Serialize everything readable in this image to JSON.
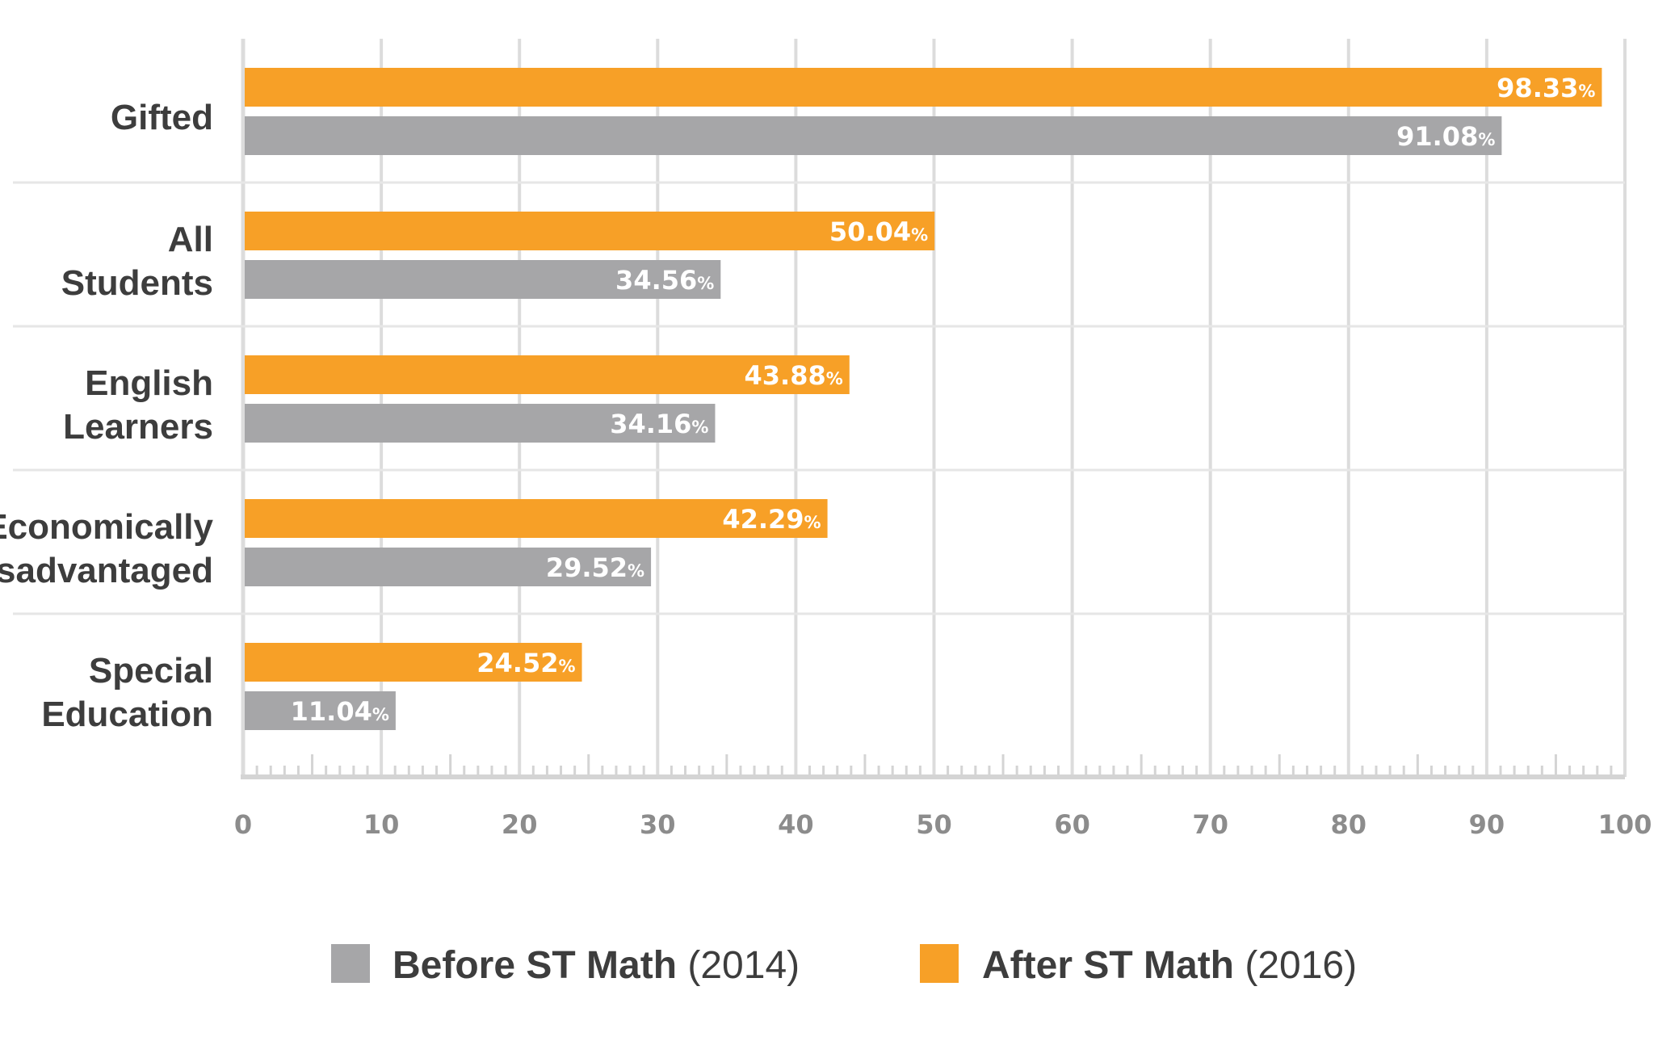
{
  "chart_data": {
    "type": "bar",
    "orientation": "horizontal",
    "categories": [
      "Gifted",
      "All Students",
      "English Learners",
      "Economically Disadvantaged",
      "Special Education"
    ],
    "category_lines": [
      [
        "Gifted"
      ],
      [
        "All",
        "Students"
      ],
      [
        "English",
        "Learners"
      ],
      [
        "Economically",
        "Disadvantaged"
      ],
      [
        "Special",
        "Education"
      ]
    ],
    "series": [
      {
        "name": "After ST Math (2016)",
        "legend_bold": "After ST Math",
        "legend_year": "(2016)",
        "color": "#f7a027",
        "values": [
          98.33,
          50.04,
          43.88,
          42.29,
          24.52
        ],
        "labels": [
          "98.33",
          "50.04",
          "43.88",
          "42.29",
          "24.52"
        ]
      },
      {
        "name": "Before ST Math (2014)",
        "legend_bold": "Before ST Math",
        "legend_year": "(2014)",
        "color": "#a6a6a8",
        "values": [
          91.08,
          34.56,
          34.16,
          29.52,
          11.04
        ],
        "labels": [
          "91.08",
          "34.56",
          "34.16",
          "29.52",
          "11.04"
        ]
      }
    ],
    "percent_sign": "%",
    "xlim": [
      0,
      100
    ],
    "xticks": [
      0,
      10,
      20,
      30,
      40,
      50,
      60,
      70,
      80,
      90,
      100
    ],
    "xtick_labels": [
      "0",
      "10",
      "20",
      "30",
      "40",
      "50",
      "60",
      "70",
      "80",
      "90",
      "100"
    ],
    "grid": true,
    "legend_position": "bottom-center",
    "title": "",
    "xlabel": "",
    "ylabel": ""
  }
}
